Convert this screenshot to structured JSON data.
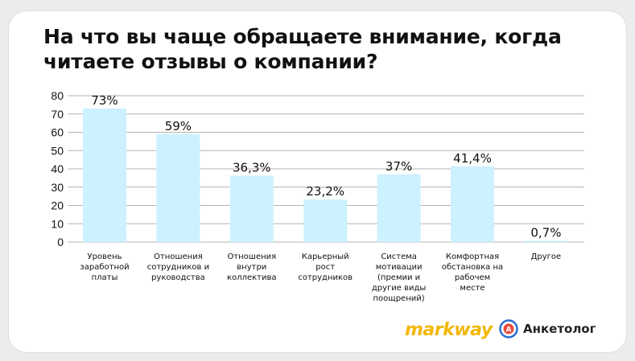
{
  "title": "На что вы чаще обращаете внимание, когда читаете отзывы о компании?",
  "colors": {
    "bar": "#ccf1ff",
    "grid": "#b4b4b4",
    "text": "#111111",
    "markway": "#f2b705",
    "anketologRing": "#2b6fd1",
    "anketologInner": "#e64b3c"
  },
  "brands": {
    "markway": "markway",
    "anketolog": "Анкетолог"
  },
  "chart_data": {
    "type": "bar",
    "title": "На что вы чаще обращаете внимание, когда читаете отзывы о компании?",
    "xlabel": "",
    "ylabel": "",
    "ylim": [
      0,
      80
    ],
    "yticks": [
      0,
      10,
      20,
      30,
      40,
      50,
      60,
      70,
      80
    ],
    "grid": true,
    "categories": [
      [
        "Уровень",
        "заработной",
        "платы"
      ],
      [
        "Отношения",
        "сотрудников и",
        "руководства"
      ],
      [
        "Отношения",
        "внутри",
        "коллектива"
      ],
      [
        "Карьерный",
        "рост",
        "сотрудников"
      ],
      [
        "Система",
        "мотивации",
        "(премии и",
        "другие виды",
        "поощрений)"
      ],
      [
        "Комфортная",
        "обстановка на",
        "рабочем",
        "месте"
      ],
      [
        "Другое"
      ]
    ],
    "values": [
      73,
      59,
      36.3,
      23.2,
      37,
      41.4,
      0.7
    ],
    "data_labels": [
      "73%",
      "59%",
      "36,3%",
      "23,2%",
      "37%",
      "41,4%",
      "0,7%"
    ]
  }
}
